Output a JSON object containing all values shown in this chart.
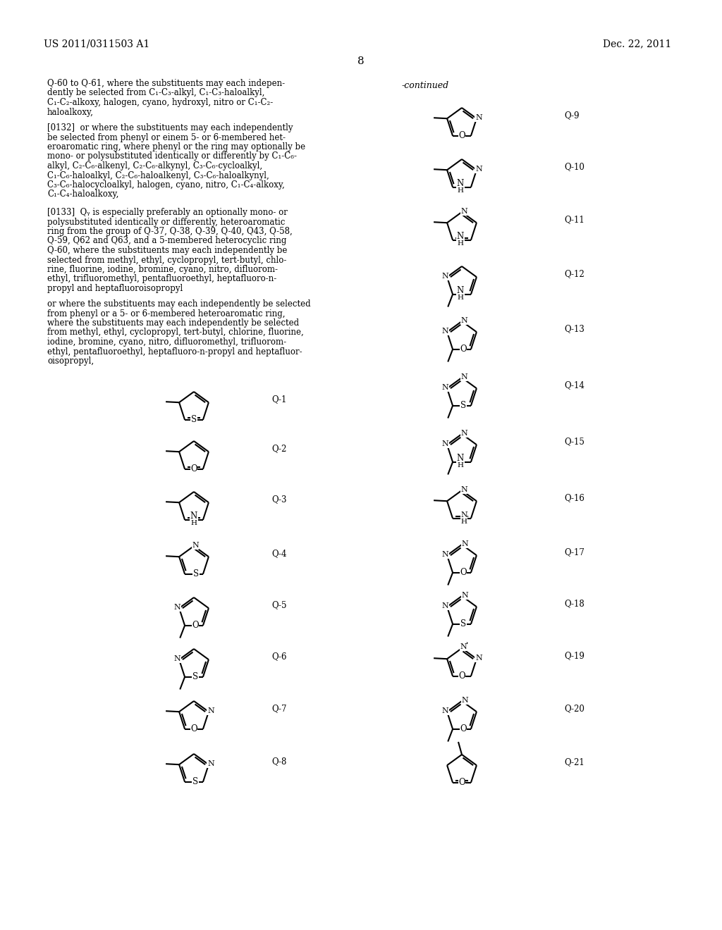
{
  "page_header_left": "US 2011/0311503 A1",
  "page_header_right": "Dec. 22, 2011",
  "page_number": "8",
  "background_color": "#ffffff"
}
